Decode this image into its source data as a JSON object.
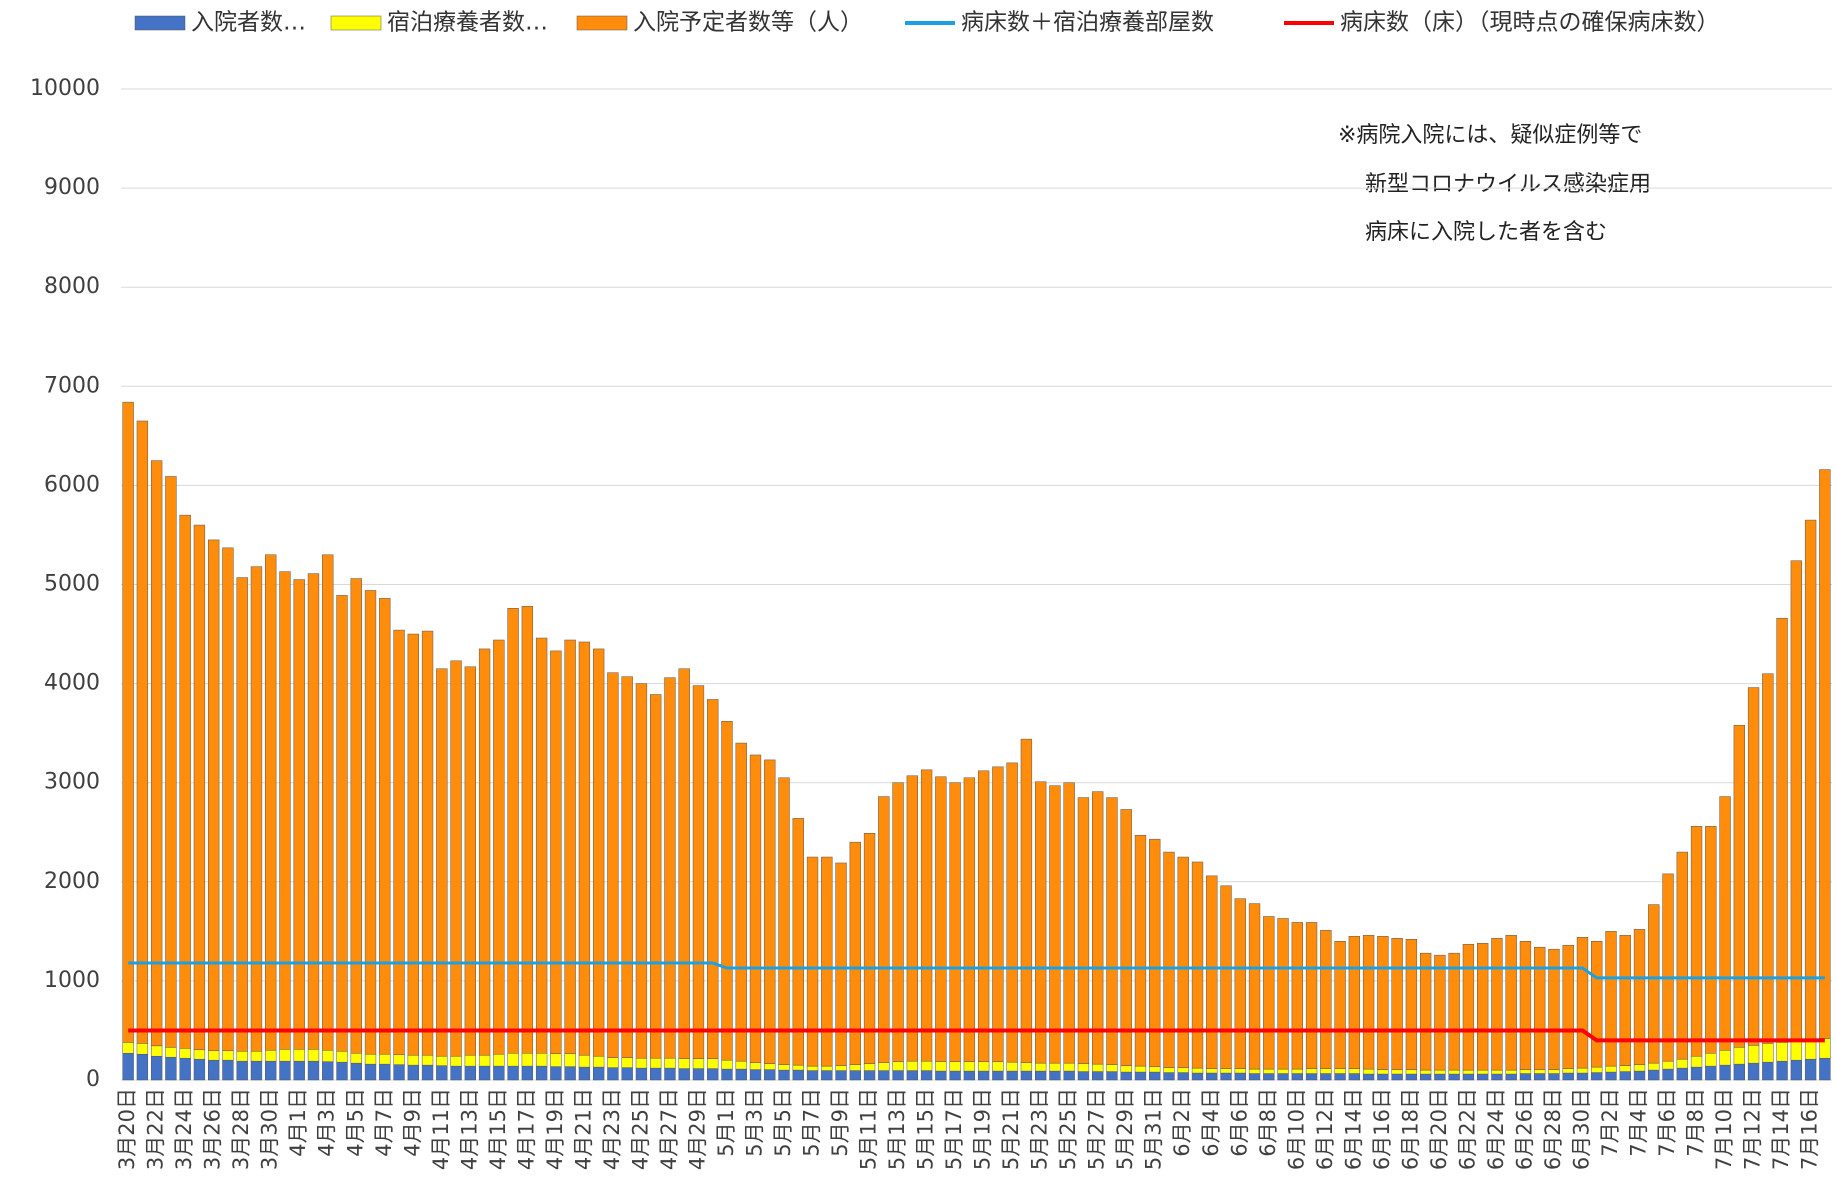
{
  "chart_data": {
    "type": "bar",
    "stacked": true,
    "categories": [
      "3月20日",
      null,
      "3月22日",
      null,
      "3月24日",
      null,
      "3月26日",
      null,
      "3月28日",
      null,
      "3月30日",
      null,
      "4月1日",
      null,
      "4月3日",
      null,
      "4月5日",
      null,
      "4月7日",
      null,
      "4月9日",
      null,
      "4月11日",
      null,
      "4月13日",
      null,
      "4月15日",
      null,
      "4月17日",
      null,
      "4月19日",
      null,
      "4月21日",
      null,
      "4月23日",
      null,
      "4月25日",
      null,
      "4月27日",
      null,
      "4月29日",
      null,
      "5月1日",
      null,
      "5月3日",
      null,
      "5月5日",
      null,
      "5月7日",
      null,
      "5月9日",
      null,
      "5月11日",
      null,
      "5月13日",
      null,
      "5月15日",
      null,
      "5月17日",
      null,
      "5月19日",
      null,
      "5月21日",
      null,
      "5月23日",
      null,
      "5月25日",
      null,
      "5月27日",
      null,
      "5月29日",
      null,
      "5月31日",
      null,
      "6月2日",
      null,
      "6月4日",
      null,
      "6月6日",
      null,
      "6月8日",
      null,
      "6月10日",
      null,
      "6月12日",
      null,
      "6月14日",
      null,
      "6月16日",
      null,
      "6月18日",
      null,
      "6月20日",
      null,
      "6月22日",
      null,
      "6月24日",
      null,
      "6月26日",
      null,
      "6月28日",
      null,
      "6月30日",
      null,
      "7月2日",
      null,
      "7月4日",
      null,
      "7月6日",
      null,
      "7月8日",
      null,
      "7月10日",
      null,
      "7月12日",
      null,
      "7月14日",
      null,
      "7月16日",
      null
    ],
    "series": [
      {
        "name": "入院者数…",
        "color": "#4472c4",
        "values": [
          270,
          260,
          240,
          230,
          220,
          210,
          200,
          200,
          190,
          190,
          190,
          190,
          190,
          190,
          185,
          180,
          170,
          160,
          160,
          155,
          150,
          150,
          145,
          140,
          140,
          140,
          140,
          140,
          140,
          140,
          135,
          135,
          130,
          130,
          125,
          125,
          120,
          120,
          120,
          115,
          115,
          115,
          110,
          110,
          105,
          105,
          100,
          100,
          95,
          95,
          95,
          95,
          95,
          95,
          95,
          95,
          95,
          90,
          90,
          90,
          90,
          90,
          90,
          90,
          90,
          90,
          90,
          85,
          85,
          85,
          80,
          80,
          80,
          75,
          75,
          70,
          70,
          70,
          70,
          65,
          65,
          65,
          65,
          65,
          65,
          65,
          65,
          60,
          60,
          60,
          60,
          60,
          60,
          60,
          60,
          60,
          60,
          60,
          65,
          65,
          65,
          70,
          70,
          75,
          80,
          85,
          90,
          100,
          110,
          120,
          130,
          140,
          150,
          160,
          170,
          180,
          190,
          200,
          210,
          220
        ]
      },
      {
        "name": "宿泊療養者数…",
        "color": "#ffff00",
        "values": [
          110,
          110,
          105,
          100,
          100,
          95,
          95,
          95,
          100,
          100,
          110,
          120,
          120,
          120,
          115,
          110,
          100,
          100,
          100,
          100,
          100,
          100,
          95,
          100,
          110,
          110,
          120,
          130,
          130,
          130,
          130,
          130,
          120,
          110,
          100,
          100,
          100,
          100,
          100,
          100,
          100,
          100,
          90,
          80,
          70,
          60,
          55,
          50,
          45,
          45,
          50,
          60,
          70,
          80,
          90,
          95,
          95,
          95,
          95,
          95,
          95,
          95,
          90,
          85,
          80,
          80,
          80,
          80,
          75,
          70,
          65,
          60,
          55,
          50,
          50,
          50,
          45,
          45,
          45,
          45,
          45,
          45,
          45,
          50,
          50,
          50,
          50,
          50,
          45,
          45,
          45,
          40,
          40,
          40,
          40,
          40,
          40,
          40,
          40,
          40,
          40,
          45,
          50,
          55,
          60,
          60,
          65,
          70,
          80,
          90,
          110,
          130,
          150,
          170,
          180,
          190,
          190,
          200,
          200,
          200
        ]
      },
      {
        "name": "入院予定者数等（人）",
        "color": "#ff8c0a",
        "values": [
          6460,
          6280,
          5905,
          5760,
          5380,
          5295,
          5155,
          5075,
          4780,
          4890,
          5000,
          4820,
          4740,
          4800,
          5000,
          4600,
          4790,
          4680,
          4600,
          4285,
          4250,
          4280,
          3910,
          3990,
          3920,
          4100,
          4180,
          4490,
          4510,
          4190,
          4065,
          4175,
          4170,
          4110,
          3885,
          3845,
          3780,
          3670,
          3840,
          3935,
          3765,
          3625,
          3420,
          3210,
          3105,
          3065,
          2895,
          2490,
          2110,
          2110,
          2045,
          2245,
          2325,
          2685,
          2815,
          2880,
          2940,
          2875,
          2815,
          2865,
          2935,
          2975,
          3020,
          3265,
          2840,
          2800,
          2830,
          2685,
          2750,
          2695,
          2585,
          2330,
          2295,
          2175,
          2125,
          2080,
          1945,
          1845,
          1715,
          1670,
          1540,
          1520,
          1480,
          1475,
          1395,
          1285,
          1335,
          1350,
          1345,
          1325,
          1315,
          1180,
          1160,
          1180,
          1270,
          1280,
          1330,
          1360,
          1295,
          1235,
          1215,
          1245,
          1320,
          1270,
          1360,
          1315,
          1365,
          1600,
          1890,
          2090,
          2320,
          2290,
          2560,
          3250,
          3610,
          3730,
          4280,
          4840,
          5240,
          5740
        ]
      },
      {
        "name": "病床数＋宿泊療養部屋数",
        "color": "#1ba1e2",
        "type": "line",
        "values": [
          1180,
          1180,
          1180,
          1180,
          1180,
          1180,
          1180,
          1180,
          1180,
          1180,
          1180,
          1180,
          1180,
          1180,
          1180,
          1180,
          1180,
          1180,
          1180,
          1180,
          1180,
          1180,
          1180,
          1180,
          1180,
          1180,
          1180,
          1180,
          1180,
          1180,
          1180,
          1180,
          1180,
          1180,
          1180,
          1180,
          1180,
          1180,
          1180,
          1180,
          1180,
          1180,
          1130,
          1130,
          1130,
          1130,
          1130,
          1130,
          1130,
          1130,
          1130,
          1130,
          1130,
          1130,
          1130,
          1130,
          1130,
          1130,
          1130,
          1130,
          1130,
          1130,
          1130,
          1130,
          1130,
          1130,
          1130,
          1130,
          1130,
          1130,
          1130,
          1130,
          1130,
          1130,
          1130,
          1130,
          1130,
          1130,
          1130,
          1130,
          1130,
          1130,
          1130,
          1130,
          1130,
          1130,
          1130,
          1130,
          1130,
          1130,
          1130,
          1130,
          1130,
          1130,
          1130,
          1130,
          1130,
          1130,
          1130,
          1130,
          1130,
          1130,
          1130,
          1030,
          1030,
          1030,
          1030,
          1030,
          1030,
          1030,
          1030,
          1030,
          1030,
          1030,
          1030,
          1030,
          1030,
          1030,
          1030,
          1030
        ]
      },
      {
        "name": "病床数（床）（現時点の確保病床数）",
        "color": "#ff0000",
        "type": "line",
        "values": [
          500,
          500,
          500,
          500,
          500,
          500,
          500,
          500,
          500,
          500,
          500,
          500,
          500,
          500,
          500,
          500,
          500,
          500,
          500,
          500,
          500,
          500,
          500,
          500,
          500,
          500,
          500,
          500,
          500,
          500,
          500,
          500,
          500,
          500,
          500,
          500,
          500,
          500,
          500,
          500,
          500,
          500,
          500,
          500,
          500,
          500,
          500,
          500,
          500,
          500,
          500,
          500,
          500,
          500,
          500,
          500,
          500,
          500,
          500,
          500,
          500,
          500,
          500,
          500,
          500,
          500,
          500,
          500,
          500,
          500,
          500,
          500,
          500,
          500,
          500,
          500,
          500,
          500,
          500,
          500,
          500,
          500,
          500,
          500,
          500,
          500,
          500,
          500,
          500,
          500,
          500,
          500,
          500,
          500,
          500,
          500,
          500,
          500,
          500,
          500,
          500,
          500,
          500,
          400,
          400,
          400,
          400,
          400,
          400,
          400,
          400,
          400,
          400,
          400,
          400,
          400,
          400,
          400,
          400,
          400
        ]
      }
    ],
    "ylim": [
      0,
      10000
    ],
    "yticks": [
      0,
      1000,
      2000,
      3000,
      4000,
      5000,
      6000,
      7000,
      8000,
      9000,
      10000
    ],
    "grid": true,
    "annotation": [
      "※病院入院には、疑似症例等で",
      "新型コロナウイルス感染症用",
      "病床に入院した者を含む"
    ]
  }
}
